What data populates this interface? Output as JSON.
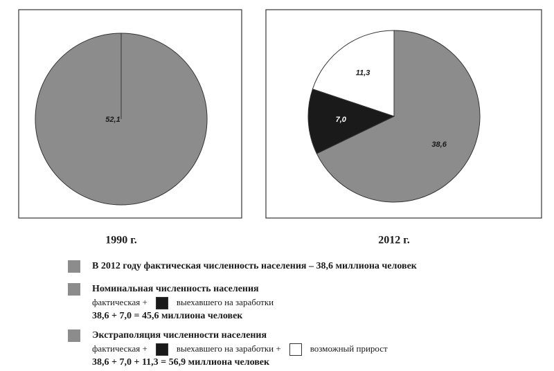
{
  "chart_data": [
    {
      "type": "pie",
      "title": "1990 г.",
      "values": [
        52.1
      ],
      "value_labels": [
        "52,1"
      ],
      "colors": [
        "#8c8c8c"
      ]
    },
    {
      "type": "pie",
      "title": "2012 г.",
      "values": [
        38.6,
        7.0,
        11.3
      ],
      "value_labels": [
        "38,6",
        "7,0",
        "11,3"
      ],
      "colors": [
        "#8c8c8c",
        "#1a1a1a",
        "#ffffff"
      ]
    }
  ],
  "legend": {
    "items": [
      {
        "color": "#8c8c8c",
        "lines": [
          [
            "В 2012 году фактическая численность населения – 38,6 миллиона человек"
          ]
        ]
      },
      {
        "color": "#8c8c8c",
        "lines": [
          [
            "Номинальная численность населения"
          ],
          [
            "фактическая +",
            {
              "swatch": "#1a1a1a"
            },
            "выехавшего на заработки"
          ],
          [
            "38,6 + 7,0 = 45,6 миллиона человек"
          ]
        ]
      },
      {
        "color": "#8c8c8c",
        "lines": [
          [
            "Экстраполяция численности населения"
          ],
          [
            "фактическая +",
            {
              "swatch": "#1a1a1a"
            },
            "выехавшего на заработки +",
            {
              "swatch": "#ffffff"
            },
            "возможный прирост"
          ],
          [
            "38,6 + 7,0 + 11,3 = 56,9 миллиона человек"
          ]
        ]
      }
    ]
  }
}
